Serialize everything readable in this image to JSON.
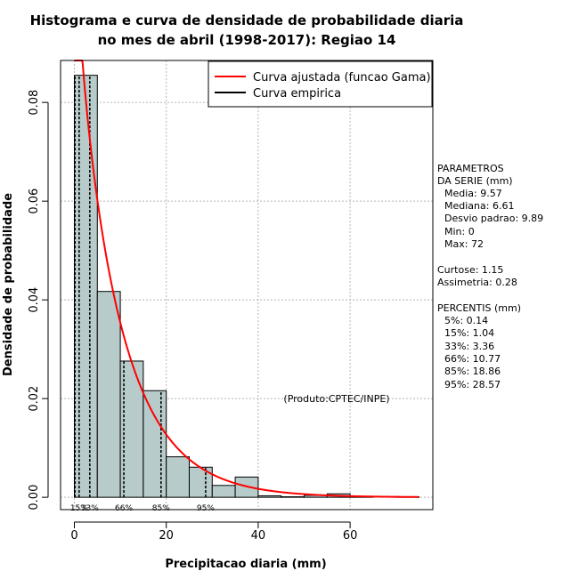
{
  "chart_data": {
    "type": "bar",
    "title_lines": [
      "Histograma e curva de densidade de probabilidade diaria",
      "no mes de abril (1998-2017): Regiao 14"
    ],
    "xlabel": "Precipitacao diaria (mm)",
    "ylabel": "Densidade de probabilidade",
    "xlim": [
      -3,
      78
    ],
    "ylim": [
      -0.0025,
      0.0885
    ],
    "xticks": [
      0,
      20,
      40,
      60
    ],
    "yticks": [
      0.0,
      0.02,
      0.04,
      0.06,
      0.08
    ],
    "ytick_labels": [
      "0.00",
      "0.02",
      "0.04",
      "0.06",
      "0.08"
    ],
    "bins": [
      {
        "start": 0,
        "end": 5,
        "density": 0.0855
      },
      {
        "start": 5,
        "end": 10,
        "density": 0.0417
      },
      {
        "start": 10,
        "end": 15,
        "density": 0.0276
      },
      {
        "start": 15,
        "end": 20,
        "density": 0.0216
      },
      {
        "start": 20,
        "end": 25,
        "density": 0.0082
      },
      {
        "start": 25,
        "end": 30,
        "density": 0.0061
      },
      {
        "start": 30,
        "end": 35,
        "density": 0.0024
      },
      {
        "start": 35,
        "end": 40,
        "density": 0.0041
      },
      {
        "start": 40,
        "end": 45,
        "density": 0.0003
      },
      {
        "start": 45,
        "end": 50,
        "density": 0.0001
      },
      {
        "start": 50,
        "end": 55,
        "density": 0.0004
      },
      {
        "start": 55,
        "end": 60,
        "density": 0.0007
      },
      {
        "start": 60,
        "end": 65,
        "density": 0.0001
      },
      {
        "start": 65,
        "end": 70,
        "density": 0.0
      },
      {
        "start": 70,
        "end": 75,
        "density": 0.0001
      }
    ],
    "series": [
      {
        "name": "Curva ajustada (funcao Gama)",
        "color": "#ff0000",
        "distribution": "gamma",
        "shape": 0.936,
        "mean": 9.57
      },
      {
        "name": "Curva empirica",
        "color": "#000000"
      }
    ],
    "percentile_lines": [
      {
        "label": "",
        "value": 0.14
      },
      {
        "label": "15%",
        "value": 1.04
      },
      {
        "label": "33%",
        "value": 3.36
      },
      {
        "label": "66%",
        "value": 10.77
      },
      {
        "label": "85%",
        "value": 18.86
      },
      {
        "label": "95%",
        "value": 28.57
      }
    ],
    "bar_color": "#b7cbcb",
    "grid": true,
    "legend_position": "top-right",
    "annotation": "(Produto:CPTEC/INPE)"
  },
  "side_panel": {
    "parametros": [
      "PARAMETROS",
      "DA SERIE (mm)"
    ],
    "stats": [
      "Media: 9.57",
      "Mediana: 6.61",
      "Desvio padrao: 9.89",
      "Min: 0",
      "Max: 72"
    ],
    "shape": [
      "Curtose: 1.15",
      "Assimetria: 0.28"
    ],
    "percentis_title": "PERCENTIS (mm)",
    "percentis": [
      "5%: 0.14",
      "15%: 1.04",
      "33%: 3.36",
      "66%: 10.77",
      "85%: 18.86",
      "95%: 28.57"
    ]
  }
}
